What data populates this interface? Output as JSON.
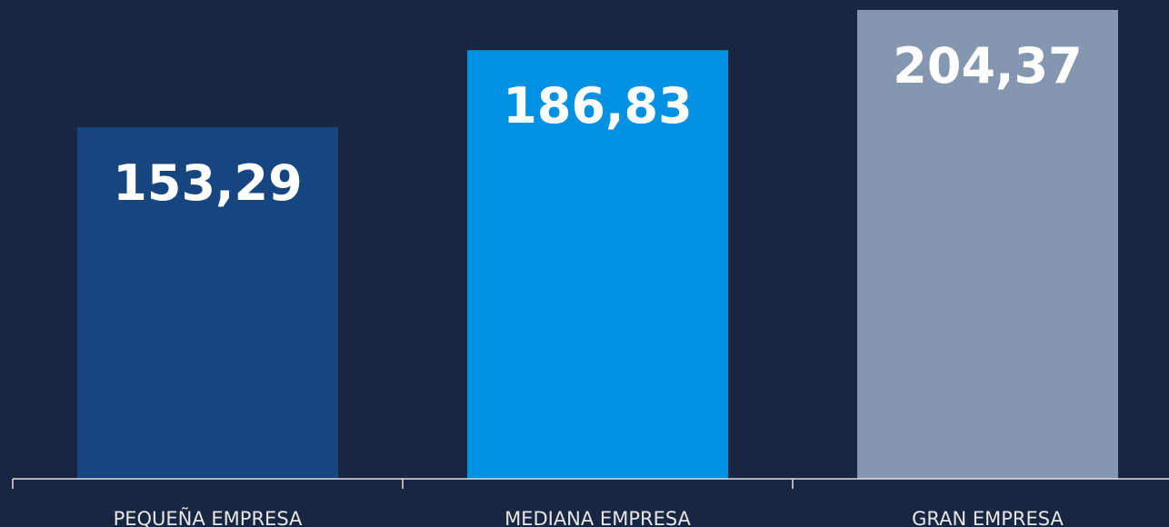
{
  "chart_data": {
    "type": "bar",
    "categories": [
      "PEQUEÑA EMPRESA",
      "MEDIANA EMPRESA",
      "GRAN EMPRESA"
    ],
    "values": [
      153.29,
      186.83,
      204.37
    ],
    "value_labels": [
      "153,29",
      "186,83",
      "204,37"
    ],
    "colors": [
      "#17457f",
      "#0091e3",
      "#8497b0"
    ],
    "ylim": [
      0,
      208.7
    ]
  }
}
